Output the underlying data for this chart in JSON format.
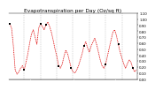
{
  "title": "Evapotranspiration per Day (Oz/sq ft)",
  "background_color": "#ffffff",
  "line_color": "#dd0000",
  "marker_color": "#000000",
  "grid_color": "#aaaaaa",
  "values": [
    0.92,
    0.85,
    0.55,
    0.15,
    0.08,
    0.12,
    0.18,
    0.22,
    0.15,
    0.28,
    0.42,
    0.6,
    0.75,
    0.82,
    0.7,
    0.58,
    0.85,
    0.92,
    0.88,
    0.82,
    0.9,
    0.95,
    0.88,
    0.78,
    0.65,
    0.5,
    0.38,
    0.22,
    0.18,
    0.25,
    0.38,
    0.48,
    0.42,
    0.3,
    0.18,
    0.12,
    0.1,
    0.15,
    0.22,
    0.32,
    0.42,
    0.55,
    0.62,
    0.52,
    0.45,
    0.55,
    0.62,
    0.68,
    0.58,
    0.45,
    0.32,
    0.22,
    0.18,
    0.25,
    0.38,
    0.52,
    0.65,
    0.78,
    0.82,
    0.72,
    0.58,
    0.45,
    0.35,
    0.25,
    0.18,
    0.25,
    0.32,
    0.28,
    0.18,
    0.12,
    0.15
  ],
  "special_marker_indices": [
    0,
    8,
    17,
    20,
    27,
    34,
    41,
    53,
    60,
    68
  ],
  "ylim": [
    0.0,
    1.1
  ],
  "ytick_values": [
    1.1,
    1.0,
    0.9,
    0.8,
    0.7,
    0.6,
    0.5,
    0.4,
    0.3,
    0.2,
    0.1,
    0.0
  ],
  "ytick_labels": [
    "1.10",
    "1.00",
    "0.90",
    "0.80",
    "0.70",
    "0.60",
    "0.50",
    "0.40",
    "0.30",
    "0.20",
    "0.10",
    "0.00"
  ],
  "vline_positions": [
    8,
    17,
    26,
    35,
    44,
    53,
    62
  ],
  "title_fontsize": 4.2,
  "tick_fontsize": 2.8,
  "line_width": 0.55,
  "marker_size": 1.8
}
